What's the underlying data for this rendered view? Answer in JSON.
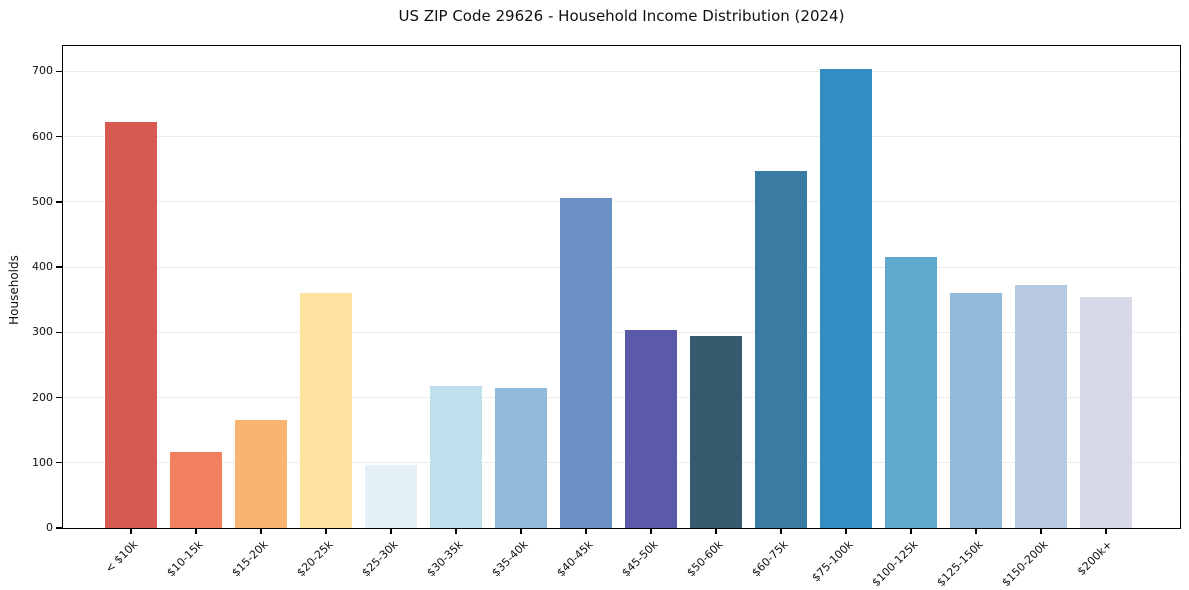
{
  "chart": {
    "title": "US ZIP Code 29626 - Household Income Distribution (2024)",
    "ylabel": "Households"
  },
  "chart_data": {
    "type": "bar",
    "title": "US ZIP Code 29626 - Household Income Distribution (2024)",
    "xlabel": "",
    "ylabel": "Households",
    "categories": [
      "< $10k",
      "$10-15k",
      "$15-20k",
      "$20-25k",
      "$25-30k",
      "$30-35k",
      "$35-40k",
      "$40-45k",
      "$45-50k",
      "$50-60k",
      "$60-75k",
      "$75-100k",
      "$100-125k",
      "$125-150k",
      "$150-200k",
      "$200k+"
    ],
    "values": [
      622,
      117,
      165,
      361,
      96,
      218,
      214,
      506,
      304,
      294,
      547,
      703,
      415,
      361,
      372,
      354
    ],
    "bar_colors": [
      "#d65a52",
      "#f0805e",
      "#f8b470",
      "#fde2a0",
      "#e4f1f7",
      "#bfe0ed",
      "#91b9d9",
      "#6b90c3",
      "#5a5aa8",
      "#365a6d",
      "#397ba3",
      "#338dc3",
      "#61a8cd",
      "#92bada",
      "#b7c9e2",
      "#d7d9e8"
    ],
    "yticks": [
      0,
      100,
      200,
      300,
      400,
      500,
      600,
      700
    ],
    "ylim": [
      0,
      739
    ],
    "grid": "horizontal-only",
    "legend": "none",
    "x_tick_rotation_deg": 45,
    "axis_color": "#000000",
    "grid_color": "#ebebeb",
    "background_color": "#ffffff"
  }
}
